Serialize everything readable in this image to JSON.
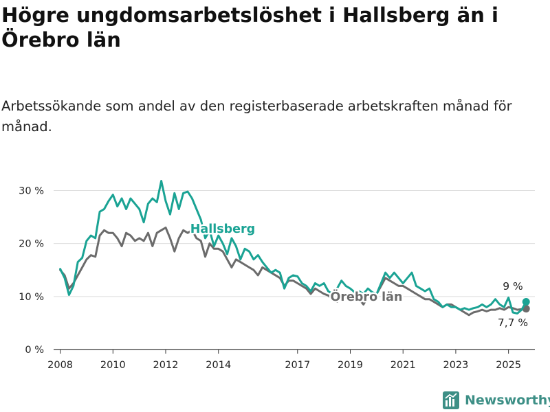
{
  "title": "Högre ungdomsarbetslöshet i Hallsberg än i Örebro län",
  "subtitle": "Arbetssökande som andel av den registerbaserade arbetskraften månad för månad.",
  "logo_text": "Newsworthy",
  "chart_data": {
    "type": "line",
    "title": "Högre ungdomsarbetslöshet i Hallsberg än i Örebro län",
    "subtitle": "Arbetssökande som andel av den registerbaserade arbetskraften månad för månad.",
    "xlabel": "",
    "ylabel": "",
    "ylim": [
      0,
      32
    ],
    "xlim": [
      "2007-10",
      "2026-01"
    ],
    "x_ticks": [
      "2008",
      "2010",
      "2012",
      "2014",
      "2017",
      "2019",
      "2021",
      "2023",
      "2025"
    ],
    "y_ticks": [
      {
        "value": 0,
        "label": "0 %"
      },
      {
        "value": 10,
        "label": "10 %"
      },
      {
        "value": 20,
        "label": "20 %"
      },
      {
        "value": 30,
        "label": "30 %"
      }
    ],
    "grid": true,
    "colors": {
      "hallsberg": "#1aa394",
      "orebro": "#6b6b6b"
    },
    "series": [
      {
        "name": "Hallsberg",
        "color": "#1aa394",
        "end_label": "9 %",
        "points": [
          [
            "2008-01",
            15.2
          ],
          [
            "2008-03",
            13.5
          ],
          [
            "2008-05",
            10.3
          ],
          [
            "2008-07",
            12.0
          ],
          [
            "2008-09",
            16.5
          ],
          [
            "2008-11",
            17.3
          ],
          [
            "2009-01",
            20.5
          ],
          [
            "2009-03",
            21.5
          ],
          [
            "2009-05",
            21.0
          ],
          [
            "2009-07",
            26.0
          ],
          [
            "2009-09",
            26.5
          ],
          [
            "2009-11",
            28.0
          ],
          [
            "2010-01",
            29.2
          ],
          [
            "2010-03",
            27.0
          ],
          [
            "2010-05",
            28.5
          ],
          [
            "2010-07",
            26.5
          ],
          [
            "2010-09",
            28.5
          ],
          [
            "2010-11",
            27.5
          ],
          [
            "2011-01",
            26.5
          ],
          [
            "2011-03",
            24.0
          ],
          [
            "2011-05",
            27.5
          ],
          [
            "2011-07",
            28.5
          ],
          [
            "2011-09",
            27.8
          ],
          [
            "2011-11",
            31.8
          ],
          [
            "2012-01",
            28.0
          ],
          [
            "2012-03",
            25.5
          ],
          [
            "2012-05",
            29.5
          ],
          [
            "2012-07",
            26.5
          ],
          [
            "2012-09",
            29.5
          ],
          [
            "2012-11",
            29.8
          ],
          [
            "2013-01",
            28.5
          ],
          [
            "2013-03",
            26.5
          ],
          [
            "2013-05",
            24.5
          ],
          [
            "2013-07",
            21.0
          ],
          [
            "2013-09",
            22.5
          ],
          [
            "2013-11",
            19.5
          ],
          [
            "2014-01",
            21.5
          ],
          [
            "2014-03",
            20.0
          ],
          [
            "2014-05",
            18.0
          ],
          [
            "2014-07",
            21.0
          ],
          [
            "2014-09",
            19.5
          ],
          [
            "2014-11",
            17.0
          ],
          [
            "2015-01",
            19.0
          ],
          [
            "2015-03",
            18.5
          ],
          [
            "2015-05",
            17.0
          ],
          [
            "2015-07",
            17.8
          ],
          [
            "2015-09",
            16.5
          ],
          [
            "2015-11",
            15.5
          ],
          [
            "2016-01",
            14.5
          ],
          [
            "2016-03",
            15.0
          ],
          [
            "2016-05",
            14.5
          ],
          [
            "2016-07",
            11.5
          ],
          [
            "2016-09",
            13.5
          ],
          [
            "2016-11",
            14.0
          ],
          [
            "2017-01",
            13.8
          ],
          [
            "2017-03",
            12.5
          ],
          [
            "2017-05",
            12.0
          ],
          [
            "2017-07",
            11.0
          ],
          [
            "2017-09",
            12.5
          ],
          [
            "2017-11",
            12.0
          ],
          [
            "2018-01",
            12.5
          ],
          [
            "2018-03",
            11.0
          ],
          [
            "2018-05",
            10.5
          ],
          [
            "2018-07",
            11.5
          ],
          [
            "2018-09",
            13.0
          ],
          [
            "2018-11",
            12.0
          ],
          [
            "2019-01",
            11.5
          ],
          [
            "2019-03",
            10.8
          ],
          [
            "2019-05",
            11.0
          ],
          [
            "2019-07",
            10.5
          ],
          [
            "2019-09",
            11.5
          ],
          [
            "2019-11",
            10.8
          ],
          [
            "2020-01",
            10.5
          ],
          [
            "2020-03",
            12.5
          ],
          [
            "2020-05",
            14.5
          ],
          [
            "2020-07",
            13.5
          ],
          [
            "2020-09",
            14.5
          ],
          [
            "2020-11",
            13.5
          ],
          [
            "2021-01",
            12.5
          ],
          [
            "2021-03",
            13.5
          ],
          [
            "2021-05",
            14.5
          ],
          [
            "2021-07",
            12.0
          ],
          [
            "2021-09",
            11.5
          ],
          [
            "2021-11",
            11.0
          ],
          [
            "2022-01",
            11.5
          ],
          [
            "2022-03",
            9.5
          ],
          [
            "2022-05",
            9.0
          ],
          [
            "2022-07",
            8.0
          ],
          [
            "2022-09",
            8.5
          ],
          [
            "2022-11",
            8.0
          ],
          [
            "2023-01",
            8.0
          ],
          [
            "2023-03",
            7.5
          ],
          [
            "2023-05",
            7.8
          ],
          [
            "2023-07",
            7.5
          ],
          [
            "2023-09",
            7.8
          ],
          [
            "2023-11",
            8.0
          ],
          [
            "2024-01",
            8.5
          ],
          [
            "2024-03",
            8.0
          ],
          [
            "2024-05",
            8.5
          ],
          [
            "2024-07",
            9.5
          ],
          [
            "2024-09",
            8.5
          ],
          [
            "2024-11",
            8.0
          ],
          [
            "2025-01",
            9.8
          ],
          [
            "2025-03",
            7.0
          ],
          [
            "2025-05",
            6.8
          ],
          [
            "2025-07",
            7.5
          ],
          [
            "2025-09",
            9.0
          ]
        ]
      },
      {
        "name": "Örebro län",
        "color": "#6b6b6b",
        "end_label": "7,7 %",
        "points": [
          [
            "2008-01",
            15.0
          ],
          [
            "2008-03",
            14.0
          ],
          [
            "2008-05",
            11.5
          ],
          [
            "2008-07",
            12.5
          ],
          [
            "2008-09",
            14.0
          ],
          [
            "2008-11",
            15.5
          ],
          [
            "2009-01",
            17.0
          ],
          [
            "2009-03",
            17.8
          ],
          [
            "2009-05",
            17.5
          ],
          [
            "2009-07",
            21.5
          ],
          [
            "2009-09",
            22.5
          ],
          [
            "2009-11",
            22.0
          ],
          [
            "2010-01",
            22.0
          ],
          [
            "2010-03",
            21.0
          ],
          [
            "2010-05",
            19.5
          ],
          [
            "2010-07",
            22.0
          ],
          [
            "2010-09",
            21.5
          ],
          [
            "2010-11",
            20.5
          ],
          [
            "2011-01",
            21.0
          ],
          [
            "2011-03",
            20.5
          ],
          [
            "2011-05",
            22.0
          ],
          [
            "2011-07",
            19.5
          ],
          [
            "2011-09",
            22.0
          ],
          [
            "2011-11",
            22.5
          ],
          [
            "2012-01",
            23.0
          ],
          [
            "2012-03",
            21.0
          ],
          [
            "2012-05",
            18.5
          ],
          [
            "2012-07",
            21.0
          ],
          [
            "2012-09",
            22.5
          ],
          [
            "2012-11",
            22.0
          ],
          [
            "2013-01",
            22.5
          ],
          [
            "2013-03",
            21.0
          ],
          [
            "2013-05",
            20.5
          ],
          [
            "2013-07",
            17.5
          ],
          [
            "2013-09",
            20.0
          ],
          [
            "2013-11",
            19.0
          ],
          [
            "2014-01",
            19.0
          ],
          [
            "2014-03",
            18.5
          ],
          [
            "2014-05",
            17.0
          ],
          [
            "2014-07",
            15.5
          ],
          [
            "2014-09",
            17.0
          ],
          [
            "2014-11",
            16.5
          ],
          [
            "2015-01",
            16.0
          ],
          [
            "2015-03",
            15.5
          ],
          [
            "2015-05",
            15.0
          ],
          [
            "2015-07",
            14.0
          ],
          [
            "2015-09",
            15.5
          ],
          [
            "2015-11",
            15.0
          ],
          [
            "2016-01",
            14.5
          ],
          [
            "2016-03",
            14.0
          ],
          [
            "2016-05",
            13.5
          ],
          [
            "2016-07",
            12.0
          ],
          [
            "2016-09",
            13.0
          ],
          [
            "2016-11",
            13.0
          ],
          [
            "2017-01",
            12.5
          ],
          [
            "2017-03",
            12.0
          ],
          [
            "2017-05",
            11.5
          ],
          [
            "2017-07",
            10.5
          ],
          [
            "2017-09",
            11.5
          ],
          [
            "2017-11",
            11.0
          ],
          [
            "2018-01",
            10.5
          ],
          [
            "2018-03",
            10.2
          ],
          [
            "2018-05",
            9.5
          ],
          [
            "2018-07",
            9.0
          ],
          [
            "2018-09",
            10.0
          ],
          [
            "2018-11",
            9.8
          ],
          [
            "2019-01",
            9.5
          ],
          [
            "2019-03",
            9.5
          ],
          [
            "2019-05",
            9.5
          ],
          [
            "2019-07",
            8.5
          ],
          [
            "2019-09",
            10.0
          ],
          [
            "2019-11",
            10.0
          ],
          [
            "2020-01",
            10.5
          ],
          [
            "2020-03",
            12.0
          ],
          [
            "2020-05",
            13.5
          ],
          [
            "2020-07",
            13.0
          ],
          [
            "2020-09",
            12.5
          ],
          [
            "2020-11",
            12.0
          ],
          [
            "2021-01",
            12.0
          ],
          [
            "2021-03",
            11.5
          ],
          [
            "2021-05",
            11.0
          ],
          [
            "2021-07",
            10.5
          ],
          [
            "2021-09",
            10.0
          ],
          [
            "2021-11",
            9.5
          ],
          [
            "2022-01",
            9.5
          ],
          [
            "2022-03",
            9.0
          ],
          [
            "2022-05",
            8.5
          ],
          [
            "2022-07",
            8.0
          ],
          [
            "2022-09",
            8.5
          ],
          [
            "2022-11",
            8.5
          ],
          [
            "2023-01",
            8.0
          ],
          [
            "2023-03",
            7.5
          ],
          [
            "2023-05",
            7.0
          ],
          [
            "2023-07",
            6.5
          ],
          [
            "2023-09",
            7.0
          ],
          [
            "2023-11",
            7.2
          ],
          [
            "2024-01",
            7.5
          ],
          [
            "2024-03",
            7.2
          ],
          [
            "2024-05",
            7.5
          ],
          [
            "2024-07",
            7.5
          ],
          [
            "2024-09",
            7.8
          ],
          [
            "2024-11",
            7.5
          ],
          [
            "2025-01",
            8.0
          ],
          [
            "2025-03",
            7.8
          ],
          [
            "2025-05",
            7.5
          ],
          [
            "2025-07",
            7.6
          ],
          [
            "2025-09",
            7.7
          ]
        ]
      }
    ]
  }
}
